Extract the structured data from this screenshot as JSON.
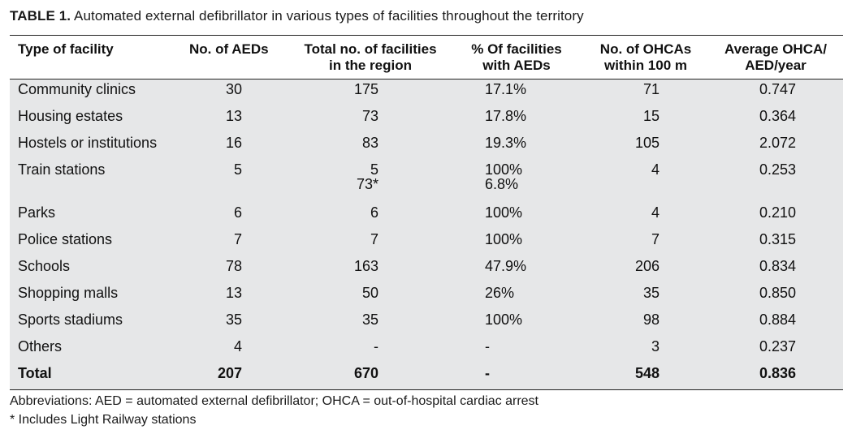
{
  "caption": {
    "label": "TABLE 1.",
    "title": "Automated external defibrillator in various types of facilities throughout the territory"
  },
  "table": {
    "headers": [
      [
        "Type of facility"
      ],
      [
        "No. of AEDs"
      ],
      [
        "Total no. of facilities",
        "in the region"
      ],
      [
        "% Of facilities",
        "with AEDs"
      ],
      [
        "No. of OHCAs",
        "within 100 m"
      ],
      [
        "Average OHCA/",
        "AED/year"
      ]
    ],
    "rows": [
      [
        "Community clinics",
        "30",
        "175",
        "17.1%",
        "71",
        "0.747"
      ],
      [
        "Housing estates",
        "13",
        "73",
        "17.8%",
        "15",
        "0.364"
      ],
      [
        "Hostels or institutions",
        "16",
        "83",
        "19.3%",
        "105",
        "2.072"
      ],
      [
        "Train stations",
        "5",
        "5",
        "100%",
        "4",
        "0.253"
      ],
      [
        "",
        "",
        "73*",
        "6.8%",
        "",
        ""
      ],
      [
        "Parks",
        "6",
        "6",
        "100%",
        "4",
        "0.210"
      ],
      [
        "Police stations",
        "7",
        "7",
        "100%",
        "7",
        "0.315"
      ],
      [
        "Schools",
        "78",
        "163",
        "47.9%",
        "206",
        "0.834"
      ],
      [
        "Shopping malls",
        "13",
        "50",
        "26%",
        "35",
        "0.850"
      ],
      [
        "Sports stadiums",
        "35",
        "35",
        "100%",
        "98",
        "0.884"
      ],
      [
        "Others",
        "4",
        "-",
        "-",
        "3",
        "0.237"
      ]
    ],
    "total": [
      "Total",
      "207",
      "670",
      "-",
      "548",
      "0.836"
    ]
  },
  "footnotes": {
    "abbreviations": "Abbreviations: AED = automated external defibrillator; OHCA = out-of-hospital cardiac arrest",
    "asterisk": "*   Includes Light Railway stations"
  }
}
